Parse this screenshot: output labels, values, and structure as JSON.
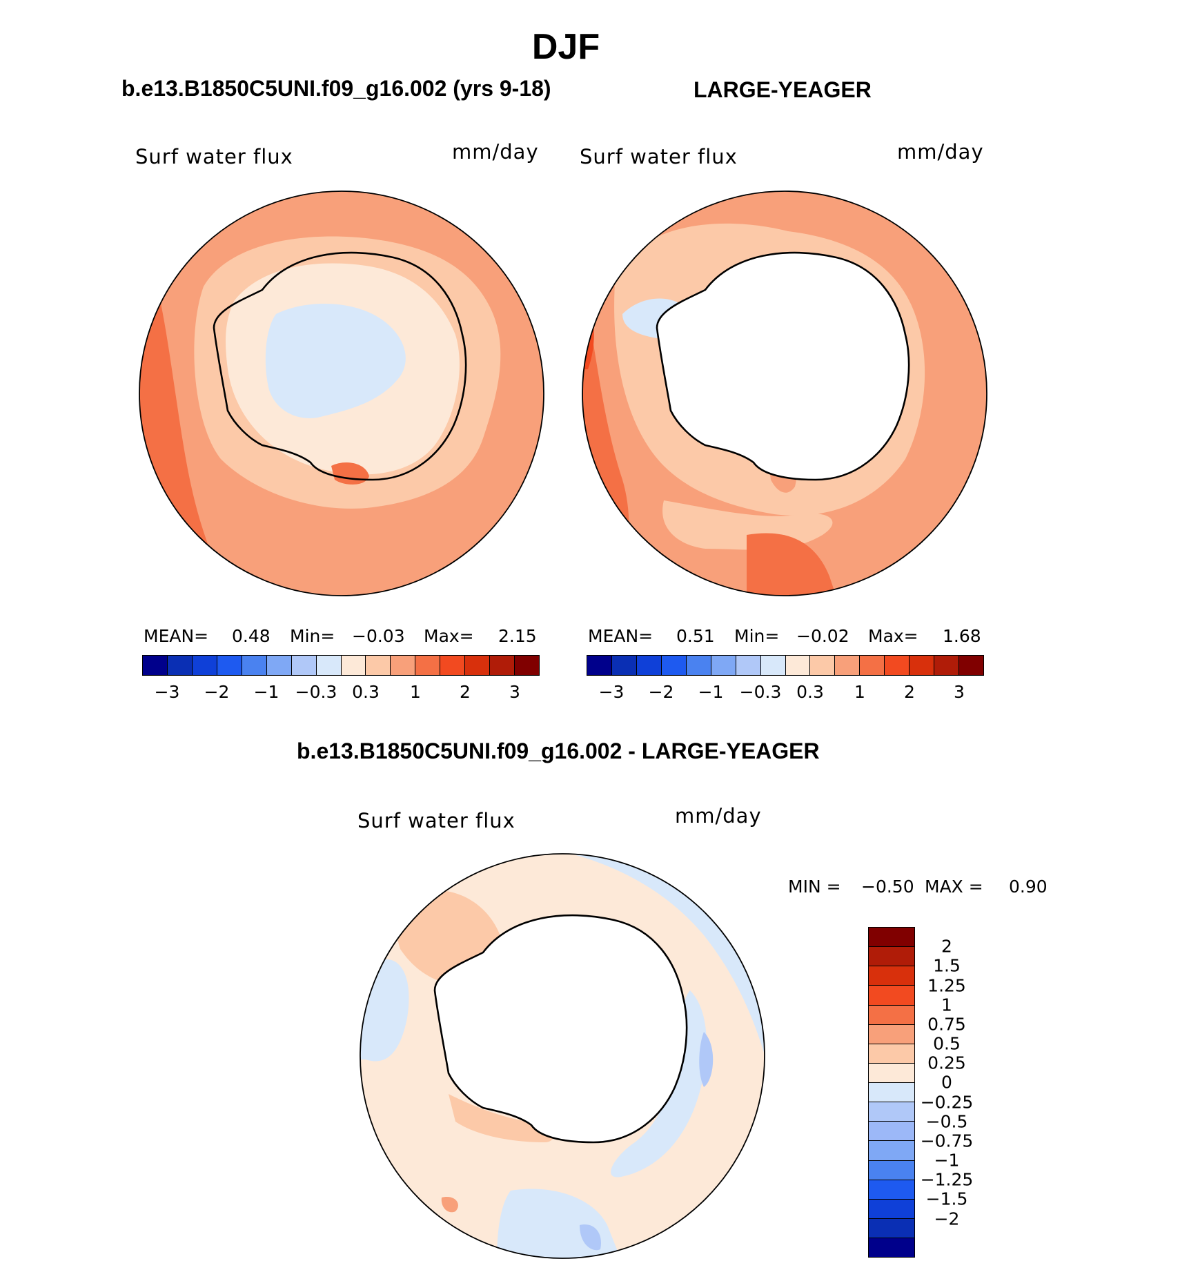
{
  "page": {
    "title": "DJF",
    "left_case": "b.e13.B1850C5UNI.f09_g16.002 (yrs 9-18)",
    "right_case": "LARGE-YEAGER",
    "diff_case": "b.e13.B1850C5UNI.f09_g16.002 - LARGE-YEAGER"
  },
  "panels": {
    "left": {
      "variable": "Surf water flux",
      "units": "mm/day",
      "mean_label": "MEAN=",
      "mean": "0.48",
      "min_label": "Min=",
      "min": "−0.03",
      "max_label": "Max=",
      "max": "2.15"
    },
    "right": {
      "variable": "Surf water flux",
      "units": "mm/day",
      "mean_label": "MEAN=",
      "mean": "0.51",
      "min_label": "Min=",
      "min": "−0.02",
      "max_label": "Max=",
      "max": "1.68"
    },
    "diff": {
      "variable": "Surf water flux",
      "units": "mm/day",
      "min_label": "MIN =",
      "min": "−0.50",
      "max_label": "MAX =",
      "max": "0.90"
    }
  },
  "colorbar_main": {
    "colors": [
      "#00008b",
      "#0a2fb4",
      "#0f40d8",
      "#1e5af0",
      "#4a82f0",
      "#7fa8f5",
      "#b0c8f8",
      "#d8e8fa",
      "#fde9d8",
      "#fcc9a8",
      "#f8a07a",
      "#f47045",
      "#f24a20",
      "#d8300c",
      "#b01c08",
      "#800000"
    ],
    "labels": [
      "−3",
      "−2",
      "−1",
      "−0.3",
      "0.3",
      "1",
      "2",
      "3"
    ]
  },
  "colorbar_diff": {
    "colors": [
      "#800000",
      "#b01c08",
      "#d8300c",
      "#f24a20",
      "#f47045",
      "#f8a07a",
      "#fcc9a8",
      "#fde9d8",
      "#d8e8fa",
      "#b0c8f8",
      "#9cb8f8",
      "#7fa8f5",
      "#4a82f0",
      "#1e5af0",
      "#0f40d8",
      "#0a2fb4",
      "#00008b"
    ],
    "labels": [
      "2",
      "1.5",
      "1.25",
      "1",
      "0.75",
      "0.5",
      "0.25",
      "0",
      "−0.25",
      "−0.5",
      "−0.75",
      "−1",
      "−1.25",
      "−1.5",
      "−2"
    ]
  },
  "field_colors": {
    "ocean_high": "#f8a07a",
    "ocean_very_high": "#f47045",
    "ocean_peak": "#d8300c",
    "ocean_mid": "#fcc9a8",
    "ocean_low": "#fde9d8",
    "neg_light": "#d8e8fa",
    "neg_mid": "#b0c8f8",
    "neg_deep": "#9cb8f8",
    "land": "#ffffff"
  }
}
